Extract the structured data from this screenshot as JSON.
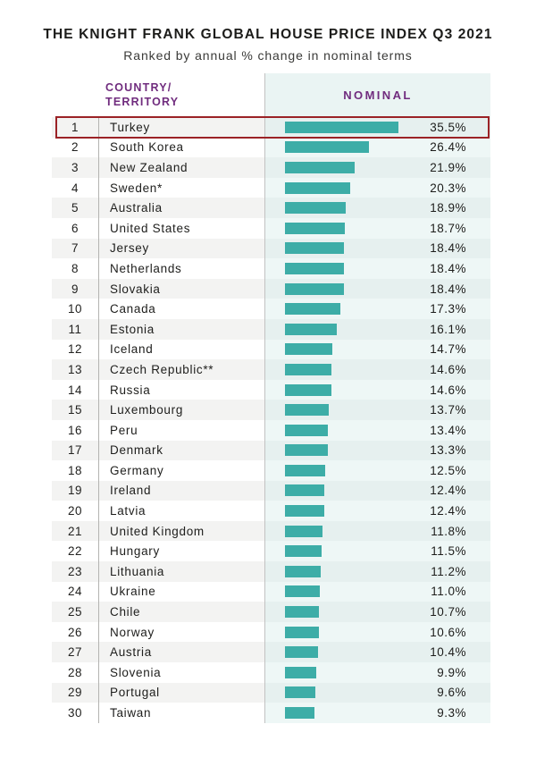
{
  "title": "THE KNIGHT FRANK GLOBAL HOUSE PRICE INDEX Q3 2021",
  "subtitle": "Ranked by annual % change in nominal terms",
  "header": {
    "country_line1": "COUNTRY/",
    "country_line2": "TERRITORY",
    "nominal": "NOMINAL"
  },
  "highlight": {
    "highlighted_rank": 1,
    "highlighted_country": "Turkey",
    "border_color": "#9b2226"
  },
  "colors": {
    "bar": "#3dada7",
    "header_text": "#702c7e",
    "title_text": "#1c1c1a",
    "row_stripe": "#f3f3f2",
    "nominal_bg_odd": "#e6f0ef",
    "nominal_bg_even": "#eef7f6",
    "highlight_border": "#9b2226"
  },
  "rows": [
    {
      "rank": 1,
      "country": "Turkey",
      "value": 35.5,
      "label": "35.5%"
    },
    {
      "rank": 2,
      "country": "South Korea",
      "value": 26.4,
      "label": "26.4%"
    },
    {
      "rank": 3,
      "country": "New Zealand",
      "value": 21.9,
      "label": "21.9%"
    },
    {
      "rank": 4,
      "country": "Sweden*",
      "value": 20.3,
      "label": "20.3%"
    },
    {
      "rank": 5,
      "country": "Australia",
      "value": 18.9,
      "label": "18.9%"
    },
    {
      "rank": 6,
      "country": "United States",
      "value": 18.7,
      "label": "18.7%"
    },
    {
      "rank": 7,
      "country": "Jersey",
      "value": 18.4,
      "label": "18.4%"
    },
    {
      "rank": 8,
      "country": "Netherlands",
      "value": 18.4,
      "label": "18.4%"
    },
    {
      "rank": 9,
      "country": "Slovakia",
      "value": 18.4,
      "label": "18.4%"
    },
    {
      "rank": 10,
      "country": "Canada",
      "value": 17.3,
      "label": "17.3%"
    },
    {
      "rank": 11,
      "country": "Estonia",
      "value": 16.1,
      "label": "16.1%"
    },
    {
      "rank": 12,
      "country": "Iceland",
      "value": 14.7,
      "label": "14.7%"
    },
    {
      "rank": 13,
      "country": "Czech Republic**",
      "value": 14.6,
      "label": "14.6%"
    },
    {
      "rank": 14,
      "country": "Russia",
      "value": 14.6,
      "label": "14.6%"
    },
    {
      "rank": 15,
      "country": "Luxembourg",
      "value": 13.7,
      "label": "13.7%"
    },
    {
      "rank": 16,
      "country": "Peru",
      "value": 13.4,
      "label": "13.4%"
    },
    {
      "rank": 17,
      "country": "Denmark",
      "value": 13.3,
      "label": "13.3%"
    },
    {
      "rank": 18,
      "country": "Germany",
      "value": 12.5,
      "label": "12.5%"
    },
    {
      "rank": 19,
      "country": "Ireland",
      "value": 12.4,
      "label": "12.4%"
    },
    {
      "rank": 20,
      "country": "Latvia",
      "value": 12.4,
      "label": "12.4%"
    },
    {
      "rank": 21,
      "country": "United Kingdom",
      "value": 11.8,
      "label": "11.8%"
    },
    {
      "rank": 22,
      "country": "Hungary",
      "value": 11.5,
      "label": "11.5%"
    },
    {
      "rank": 23,
      "country": "Lithuania",
      "value": 11.2,
      "label": "11.2%"
    },
    {
      "rank": 24,
      "country": "Ukraine",
      "value": 11.0,
      "label": "11.0%"
    },
    {
      "rank": 25,
      "country": "Chile",
      "value": 10.7,
      "label": "10.7%"
    },
    {
      "rank": 26,
      "country": "Norway",
      "value": 10.6,
      "label": "10.6%"
    },
    {
      "rank": 27,
      "country": "Austria",
      "value": 10.4,
      "label": "10.4%"
    },
    {
      "rank": 28,
      "country": "Slovenia",
      "value": 9.9,
      "label": "9.9%"
    },
    {
      "rank": 29,
      "country": "Portugal",
      "value": 9.6,
      "label": "9.6%"
    },
    {
      "rank": 30,
      "country": "Taiwan",
      "value": 9.3,
      "label": "9.3%"
    }
  ],
  "chart_data": {
    "type": "bar",
    "orientation": "horizontal",
    "title": "THE KNIGHT FRANK GLOBAL HOUSE PRICE INDEX Q3 2021",
    "subtitle": "Ranked by annual % change in nominal terms",
    "series_name": "NOMINAL",
    "categories": [
      "Turkey",
      "South Korea",
      "New Zealand",
      "Sweden*",
      "Australia",
      "United States",
      "Jersey",
      "Netherlands",
      "Slovakia",
      "Canada",
      "Estonia",
      "Iceland",
      "Czech Republic**",
      "Russia",
      "Luxembourg",
      "Peru",
      "Denmark",
      "Germany",
      "Ireland",
      "Latvia",
      "United Kingdom",
      "Hungary",
      "Lithuania",
      "Ukraine",
      "Chile",
      "Norway",
      "Austria",
      "Slovenia",
      "Portugal",
      "Taiwan"
    ],
    "values": [
      35.5,
      26.4,
      21.9,
      20.3,
      18.9,
      18.7,
      18.4,
      18.4,
      18.4,
      17.3,
      16.1,
      14.7,
      14.6,
      14.6,
      13.7,
      13.4,
      13.3,
      12.5,
      12.4,
      12.4,
      11.8,
      11.5,
      11.2,
      11.0,
      10.7,
      10.6,
      10.4,
      9.9,
      9.6,
      9.3
    ],
    "value_labels": [
      "35.5%",
      "26.4%",
      "21.9%",
      "20.3%",
      "18.9%",
      "18.7%",
      "18.4%",
      "18.4%",
      "18.4%",
      "17.3%",
      "16.1%",
      "14.7%",
      "14.6%",
      "14.6%",
      "13.7%",
      "13.4%",
      "13.3%",
      "12.5%",
      "12.4%",
      "12.4%",
      "11.8%",
      "11.5%",
      "11.2%",
      "11.0%",
      "10.7%",
      "10.6%",
      "10.4%",
      "9.9%",
      "9.6%",
      "9.3%"
    ],
    "unit": "%",
    "xlim": [
      0,
      35.5
    ],
    "grid": false,
    "legend": false,
    "highlighted_category": "Turkey",
    "bar_color": "#3dada7"
  }
}
